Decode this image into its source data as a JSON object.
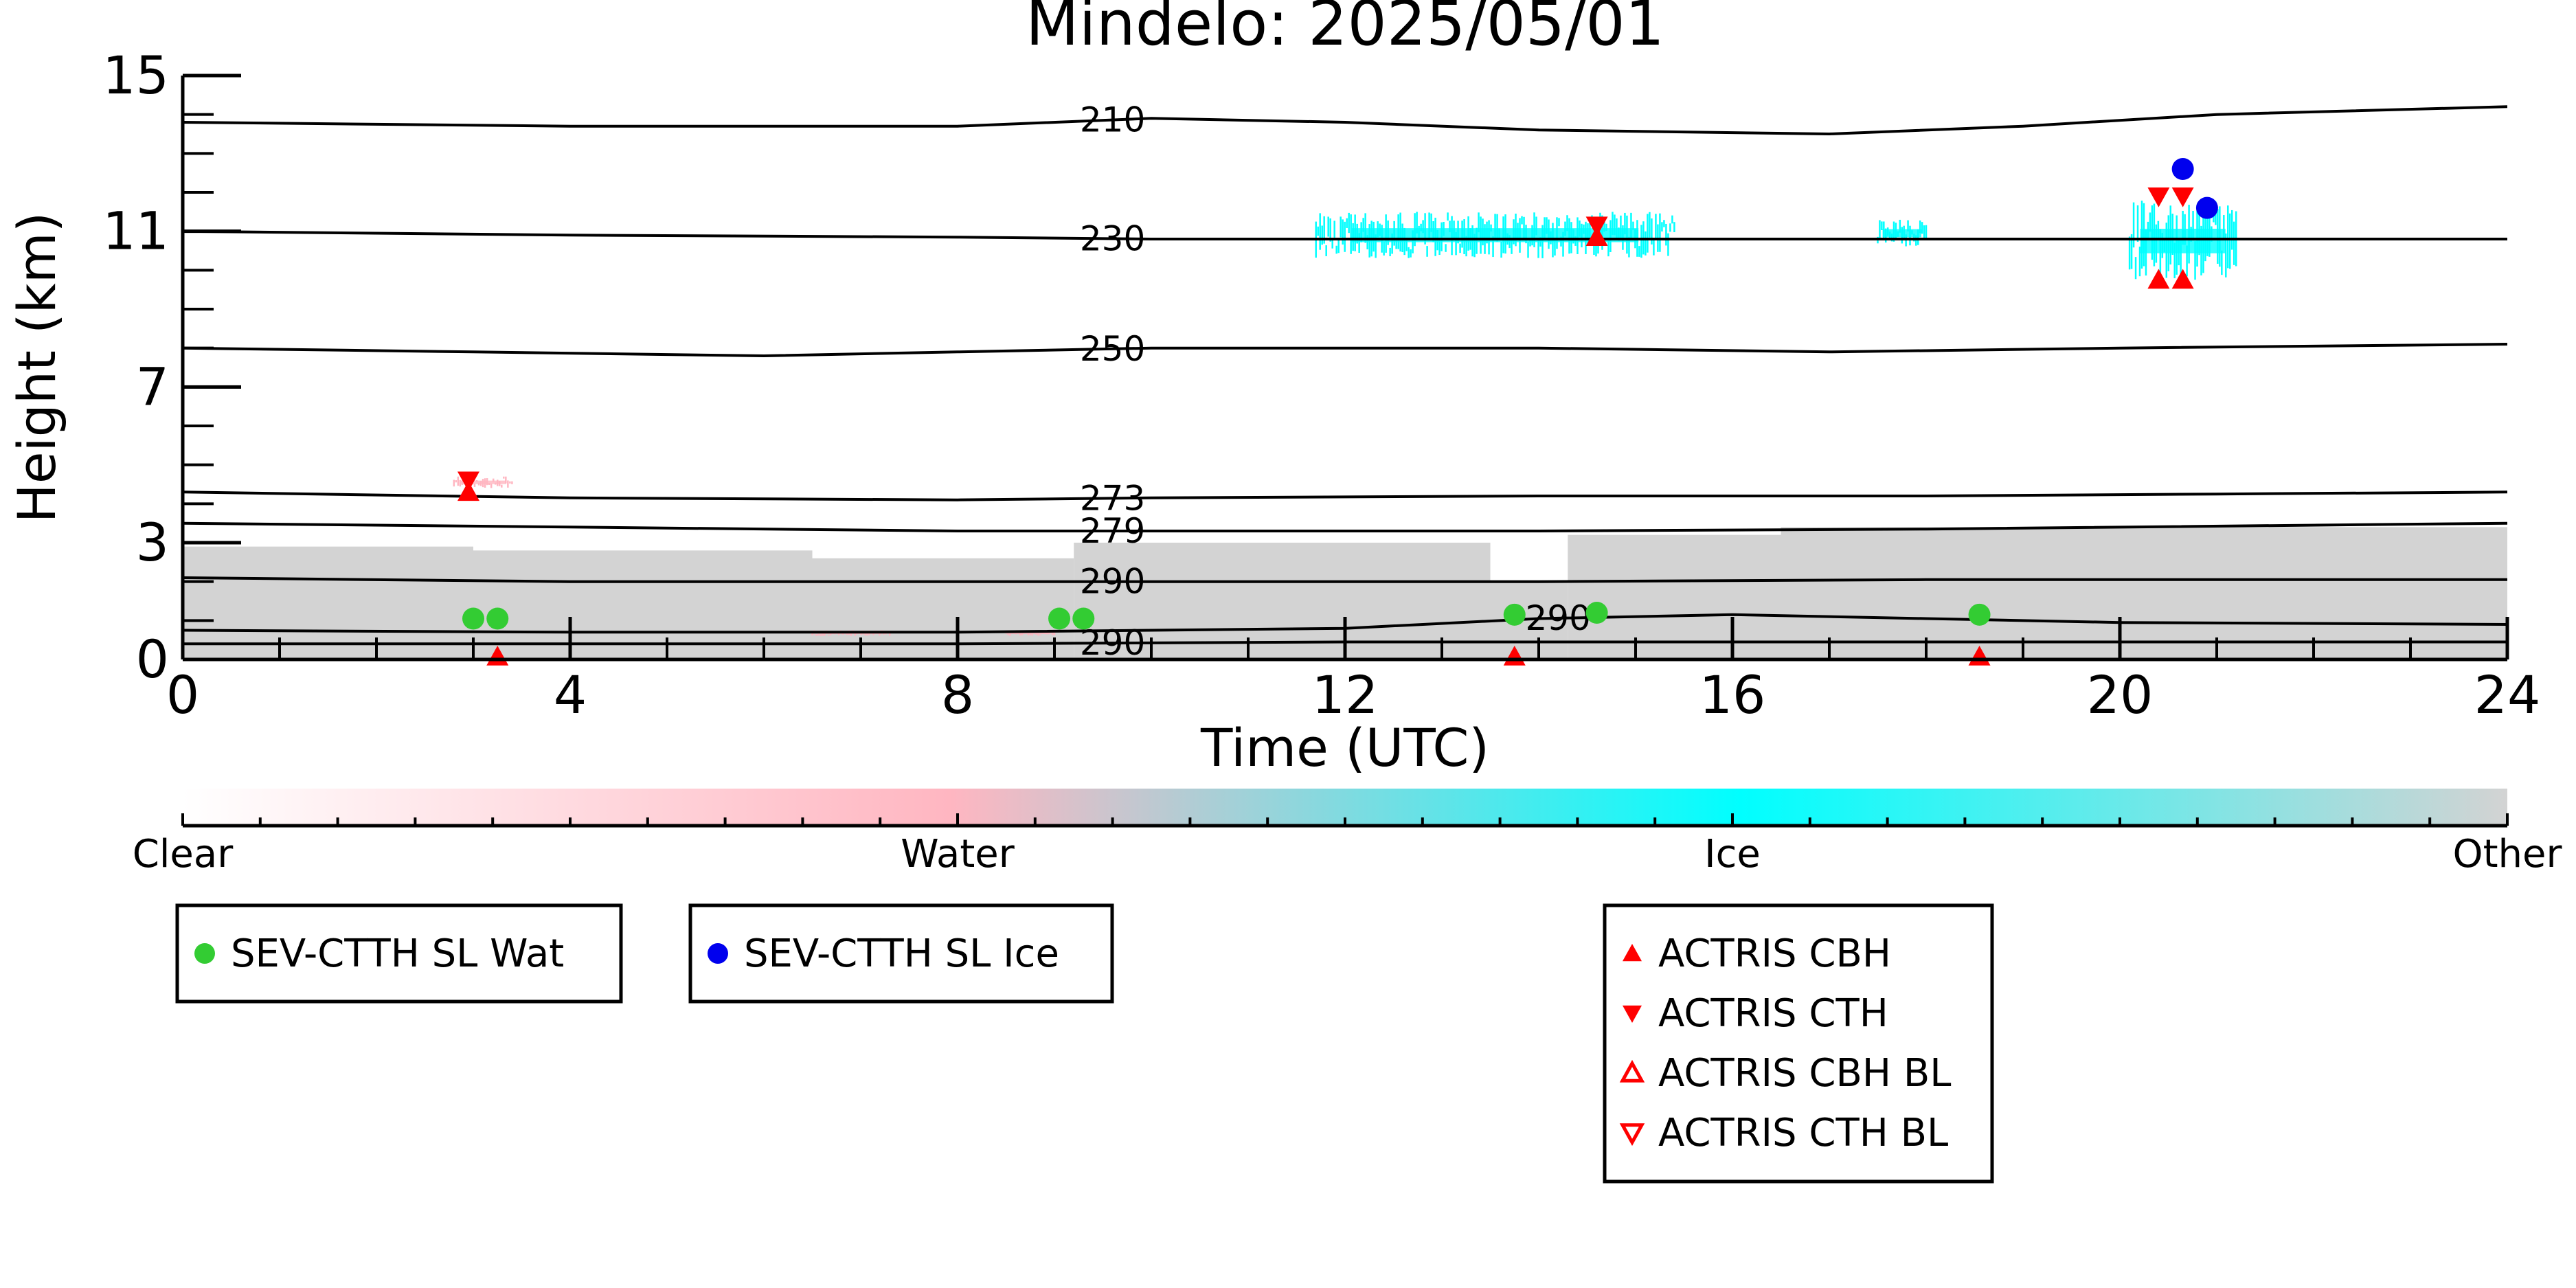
{
  "chart_data": {
    "type": "scatter",
    "title": "Mindelo: 2025/05/01",
    "xlabel": "Time (UTC)",
    "ylabel": "Height (km)",
    "xlim": [
      0,
      24
    ],
    "ylim": [
      0,
      15
    ],
    "xticks": [
      "0",
      "4",
      "8",
      "12",
      "16",
      "20",
      "24"
    ],
    "yticks": [
      "0",
      "3",
      "7",
      "11",
      "15"
    ],
    "ytick_values": [
      0,
      3,
      7,
      11,
      15
    ],
    "grid": false,
    "temperature_contours": [
      {
        "label": "210",
        "label_x": 9.6,
        "points": [
          [
            0,
            13.8
          ],
          [
            4,
            13.7
          ],
          [
            8,
            13.7
          ],
          [
            10,
            13.9
          ],
          [
            12,
            13.8
          ],
          [
            14,
            13.6
          ],
          [
            17,
            13.5
          ],
          [
            19,
            13.7
          ],
          [
            21,
            14.0
          ],
          [
            24,
            14.2
          ]
        ]
      },
      {
        "label": "230",
        "label_x": 9.6,
        "points": [
          [
            0,
            11.0
          ],
          [
            4,
            10.9
          ],
          [
            8,
            10.85
          ],
          [
            10,
            10.8
          ],
          [
            12,
            10.8
          ],
          [
            15,
            10.8
          ],
          [
            18,
            10.8
          ],
          [
            20,
            10.8
          ],
          [
            24,
            10.8
          ]
        ]
      },
      {
        "label": "250",
        "label_x": 9.6,
        "points": [
          [
            0,
            8.0
          ],
          [
            3,
            7.9
          ],
          [
            6,
            7.8
          ],
          [
            8,
            7.9
          ],
          [
            10,
            8.0
          ],
          [
            14,
            8.0
          ],
          [
            17,
            7.9
          ],
          [
            20,
            8.0
          ],
          [
            24,
            8.1
          ]
        ]
      },
      {
        "label": "273",
        "label_x": 9.6,
        "points": [
          [
            0,
            4.3
          ],
          [
            4,
            4.15
          ],
          [
            8,
            4.1
          ],
          [
            10,
            4.15
          ],
          [
            14,
            4.2
          ],
          [
            18,
            4.2
          ],
          [
            21,
            4.25
          ],
          [
            24,
            4.3
          ]
        ]
      },
      {
        "label": "279",
        "label_x": 9.6,
        "points": [
          [
            0,
            3.5
          ],
          [
            4,
            3.4
          ],
          [
            8,
            3.3
          ],
          [
            10,
            3.3
          ],
          [
            14,
            3.3
          ],
          [
            18,
            3.35
          ],
          [
            24,
            3.5
          ]
        ]
      },
      {
        "label": "290",
        "label_x": 9.6,
        "points": [
          [
            0,
            2.1
          ],
          [
            4,
            2.0
          ],
          [
            8,
            2.0
          ],
          [
            10,
            2.0
          ],
          [
            14,
            2.0
          ],
          [
            18,
            2.05
          ],
          [
            24,
            2.05
          ]
        ]
      },
      {
        "label": "290",
        "label_x": 14.2,
        "points": [
          [
            0,
            0.75
          ],
          [
            4,
            0.7
          ],
          [
            8,
            0.7
          ],
          [
            12,
            0.8
          ],
          [
            14,
            1.05
          ],
          [
            16,
            1.15
          ],
          [
            18,
            1.05
          ],
          [
            20,
            0.95
          ],
          [
            24,
            0.9
          ]
        ]
      },
      {
        "label": "290",
        "label_x": 9.6,
        "points": [
          [
            0,
            0.4
          ],
          [
            4,
            0.4
          ],
          [
            8,
            0.4
          ],
          [
            12,
            0.45
          ],
          [
            16,
            0.45
          ],
          [
            20,
            0.45
          ],
          [
            24,
            0.45
          ]
        ]
      }
    ],
    "background_layer": {
      "category": "Other",
      "segments": [
        {
          "x": [
            0,
            3.0
          ],
          "top": 2.9
        },
        {
          "x": [
            3.0,
            6.5
          ],
          "top": 2.8
        },
        {
          "x": [
            6.5,
            9.2
          ],
          "top": 2.6
        },
        {
          "x": [
            9.2,
            13.5
          ],
          "top": 3.0
        },
        {
          "x": [
            13.5,
            14.3
          ],
          "top": 2.0
        },
        {
          "x": [
            14.3,
            16.5
          ],
          "top": 3.2
        },
        {
          "x": [
            16.5,
            24
          ],
          "top": 3.4
        }
      ]
    },
    "cloud_observations": [
      {
        "category": "Ice",
        "x": [
          11.7,
          15.4
        ],
        "y": [
          10.3,
          11.5
        ]
      },
      {
        "category": "Ice",
        "x": [
          17.5,
          18.0
        ],
        "y": [
          10.6,
          11.3
        ]
      },
      {
        "category": "Ice",
        "x": [
          20.1,
          21.2
        ],
        "y": [
          9.7,
          11.8
        ]
      },
      {
        "category": "Water",
        "x": [
          2.8,
          3.4
        ],
        "y": [
          4.4,
          4.7
        ]
      },
      {
        "category": "Water",
        "x": [
          6.5,
          7.3
        ],
        "y": [
          0.6,
          0.75
        ]
      },
      {
        "category": "Water",
        "x": [
          8.5,
          9.0
        ],
        "y": [
          0.6,
          0.75
        ]
      }
    ],
    "series": [
      {
        "name": "SEV-CTTH SL Wat",
        "marker": "circle",
        "color": "#33cc33",
        "points": [
          [
            3.0,
            1.05
          ],
          [
            3.25,
            1.05
          ],
          [
            9.05,
            1.05
          ],
          [
            9.3,
            1.05
          ],
          [
            13.75,
            1.15
          ],
          [
            14.6,
            1.2
          ],
          [
            18.55,
            1.15
          ]
        ]
      },
      {
        "name": "SEV-CTTH SL Ice",
        "marker": "circle",
        "color": "#0000ee",
        "points": [
          [
            20.65,
            12.6
          ],
          [
            20.9,
            11.6
          ]
        ]
      },
      {
        "name": "ACTRIS CBH",
        "marker": "triangle-up",
        "color": "#ff0000",
        "points": [
          [
            2.95,
            4.3
          ],
          [
            14.6,
            10.85
          ],
          [
            20.4,
            9.75
          ],
          [
            20.65,
            9.75
          ],
          [
            3.25,
            0.05
          ],
          [
            13.75,
            0.05
          ],
          [
            18.55,
            0.05
          ]
        ]
      },
      {
        "name": "ACTRIS CTH",
        "marker": "triangle-down",
        "color": "#ff0000",
        "points": [
          [
            2.95,
            4.6
          ],
          [
            14.6,
            11.15
          ],
          [
            20.4,
            11.9
          ],
          [
            20.65,
            11.9
          ]
        ]
      },
      {
        "name": "ACTRIS CBH BL",
        "marker": "triangle-up-open",
        "color": "#ff0000",
        "points": []
      },
      {
        "name": "ACTRIS CTH BL",
        "marker": "triangle-down-open",
        "color": "#ff0000",
        "points": []
      }
    ],
    "colorbar": {
      "labels": [
        "Clear",
        "Water",
        "Ice",
        "Other"
      ],
      "stops": [
        {
          "position": 0,
          "color": "#ffffff"
        },
        {
          "position": 0.33,
          "color": "#ffb6c1"
        },
        {
          "position": 0.67,
          "color": "#00ffff"
        },
        {
          "position": 1,
          "color": "#d3d3d3"
        }
      ]
    },
    "legends": [
      {
        "entries": [
          "SEV-CTTH SL Wat"
        ]
      },
      {
        "entries": [
          "SEV-CTTH SL Ice"
        ]
      },
      {
        "entries": [
          "ACTRIS CBH",
          "ACTRIS CTH",
          "ACTRIS CBH BL",
          "ACTRIS CTH BL"
        ]
      }
    ]
  }
}
